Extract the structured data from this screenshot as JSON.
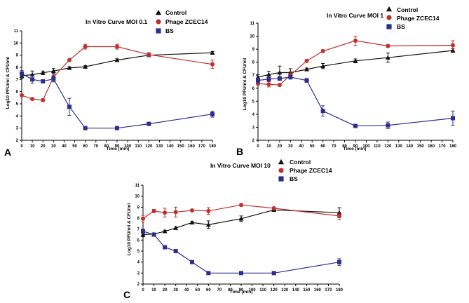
{
  "chart_data": [
    {
      "panel_label": "A",
      "type": "line",
      "title": "In Vitro Curve MOI 0.1",
      "xlabel": "Time (min)",
      "ylabel": "Log10 PFU/ml & CFU/ml",
      "xlim": [
        0,
        180
      ],
      "ylim": [
        2,
        11
      ],
      "xticks": [
        "0",
        "10",
        "20",
        "30",
        "40",
        "50",
        "60",
        "70",
        "80",
        "90",
        "100",
        "110",
        "120",
        "130",
        "140",
        "150",
        "160",
        "170",
        "180"
      ],
      "yticks": [
        "2",
        "3",
        "4",
        "5",
        "6",
        "7",
        "8",
        "9",
        "10",
        "11"
      ],
      "series": [
        {
          "name": "Control",
          "marker": "triangle",
          "color": "#111111",
          "x": [
            0,
            10,
            20,
            30,
            45,
            60,
            90,
            120,
            180
          ],
          "y": [
            7.3,
            7.4,
            7.55,
            7.7,
            7.95,
            8.05,
            8.6,
            9.0,
            9.2
          ],
          "err": [
            0.2,
            0.3,
            0.15,
            0.2,
            0.1,
            0.1,
            0.1,
            0.1,
            0.1
          ]
        },
        {
          "name": "Phage ZCEC14",
          "marker": "circle",
          "color": "#c0302b",
          "x": [
            0,
            10,
            20,
            30,
            45,
            60,
            90,
            120,
            180
          ],
          "y": [
            5.7,
            5.4,
            5.3,
            7.2,
            8.6,
            9.7,
            9.7,
            9.05,
            8.25
          ],
          "err": [
            0.1,
            0.1,
            0.1,
            0.2,
            0.1,
            0.2,
            0.2,
            0.15,
            0.35
          ]
        },
        {
          "name": "BS",
          "marker": "square",
          "color": "#2b2f8c",
          "x": [
            0,
            10,
            20,
            30,
            45,
            60,
            90,
            120,
            180
          ],
          "y": [
            7.5,
            7.0,
            6.85,
            7.05,
            4.75,
            3.0,
            3.0,
            3.35,
            4.15
          ],
          "err": [
            0.25,
            0.3,
            0.1,
            0.25,
            0.7,
            0.1,
            0.1,
            0.1,
            0.25
          ]
        }
      ]
    },
    {
      "panel_label": "B",
      "type": "line",
      "title": "In Vitro Curve MOI 1",
      "xlabel": "Time (min)",
      "ylabel": "Log10 PFU/ml & CFU/ml",
      "xlim": [
        0,
        180
      ],
      "ylim": [
        2,
        11
      ],
      "xticks": [
        "0",
        "10",
        "20",
        "30",
        "40",
        "50",
        "60",
        "70",
        "80",
        "90",
        "100",
        "110",
        "120",
        "130",
        "140",
        "150",
        "160",
        "170",
        "180"
      ],
      "yticks": [
        "2",
        "3",
        "4",
        "5",
        "6",
        "7",
        "8",
        "9",
        "10",
        "11"
      ],
      "series": [
        {
          "name": "Control",
          "marker": "triangle",
          "color": "#111111",
          "x": [
            0,
            10,
            20,
            30,
            45,
            60,
            90,
            120,
            180
          ],
          "y": [
            6.85,
            7.05,
            7.2,
            7.2,
            7.45,
            7.7,
            8.1,
            8.35,
            8.9
          ],
          "err": [
            0.2,
            0.25,
            0.5,
            0.3,
            0.1,
            0.2,
            0.15,
            0.35,
            0.15
          ]
        },
        {
          "name": "Phage ZCEC14",
          "marker": "circle",
          "color": "#c0302b",
          "x": [
            0,
            10,
            20,
            30,
            45,
            60,
            90,
            120,
            180
          ],
          "y": [
            6.35,
            6.3,
            6.25,
            7.0,
            8.1,
            8.85,
            9.65,
            9.25,
            9.3
          ],
          "err": [
            0.1,
            0.2,
            0.1,
            0.25,
            0.1,
            0.1,
            0.35,
            0.1,
            0.35
          ]
        },
        {
          "name": "BS",
          "marker": "square",
          "color": "#2b2f8c",
          "x": [
            0,
            10,
            20,
            30,
            45,
            60,
            90,
            120,
            180
          ],
          "y": [
            6.6,
            6.7,
            6.75,
            6.85,
            6.6,
            4.25,
            3.1,
            3.15,
            3.7
          ],
          "err": [
            0.2,
            0.15,
            0.15,
            0.15,
            0.15,
            0.4,
            0.1,
            0.25,
            0.55
          ]
        }
      ]
    },
    {
      "panel_label": "C",
      "type": "line",
      "title": "In Vitro Curve MOI 10",
      "xlabel": "Time (min)",
      "ylabel": "Log10 PFU/ml & CFU/ml",
      "xlim": [
        0,
        180
      ],
      "ylim": [
        2,
        11
      ],
      "xticks": [
        "0",
        "10",
        "20",
        "30",
        "40",
        "50",
        "60",
        "70",
        "80",
        "90",
        "100",
        "110",
        "120",
        "130",
        "140",
        "150",
        "160",
        "170",
        "180"
      ],
      "yticks": [
        "2",
        "3",
        "4",
        "5",
        "6",
        "7",
        "8",
        "9",
        "10",
        "11"
      ],
      "series": [
        {
          "name": "Control",
          "marker": "triangle",
          "color": "#111111",
          "x": [
            0,
            10,
            20,
            30,
            45,
            60,
            90,
            120,
            180
          ],
          "y": [
            6.5,
            6.55,
            6.8,
            7.1,
            7.6,
            7.4,
            7.95,
            8.75,
            8.5
          ],
          "err": [
            0.2,
            0.1,
            0.1,
            0.1,
            0.1,
            0.35,
            0.25,
            0.1,
            0.45
          ]
        },
        {
          "name": "Phage ZCEC14",
          "marker": "circle",
          "color": "#c0302b",
          "x": [
            0,
            10,
            20,
            30,
            45,
            60,
            90,
            120,
            180
          ],
          "y": [
            7.95,
            8.65,
            8.5,
            8.55,
            8.7,
            8.65,
            9.2,
            8.9,
            8.2
          ],
          "err": [
            0.3,
            0.15,
            0.4,
            0.45,
            0.1,
            0.3,
            0.1,
            0.1,
            0.35
          ]
        },
        {
          "name": "BS",
          "marker": "square",
          "color": "#2b2f8c",
          "x": [
            0,
            10,
            20,
            30,
            45,
            60,
            90,
            120,
            180
          ],
          "y": [
            6.8,
            6.5,
            5.35,
            5.0,
            4.0,
            3.0,
            3.0,
            3.0,
            4.0
          ],
          "err": [
            0.2,
            0.15,
            0.1,
            0.1,
            0.1,
            0.1,
            0.1,
            0.1,
            0.3
          ]
        }
      ]
    }
  ]
}
